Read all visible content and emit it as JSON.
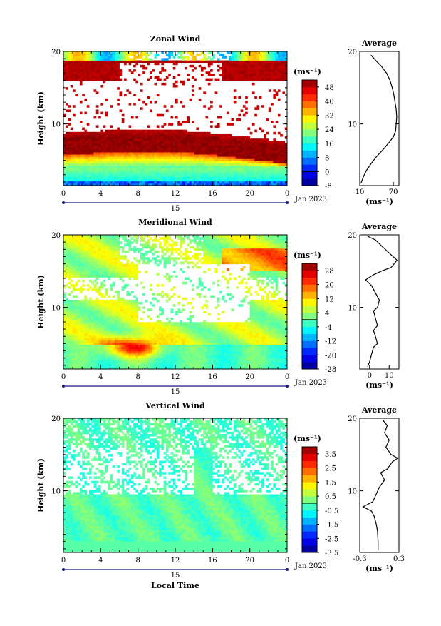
{
  "chart_data": [
    {
      "type": "heatmap",
      "title": "Zonal Wind",
      "ylabel": "Height (km)",
      "xticks": [
        "0",
        "4",
        "8",
        "12",
        "16",
        "20",
        "0"
      ],
      "date_day": "15",
      "date_month": "Jan 2023",
      "xlim": [
        0,
        24
      ],
      "ylim": [
        1.5,
        20
      ],
      "yticks": [
        "10",
        "20"
      ],
      "colorbar": {
        "unit": "(ms⁻¹)",
        "labels": [
          "48",
          "40",
          "32",
          "24",
          "16",
          "8",
          "0",
          "-8"
        ],
        "range": [
          -8,
          52
        ]
      },
      "profile": {
        "title": "Average",
        "unit": "(ms⁻¹)",
        "xticks": [
          "10",
          "70"
        ],
        "yticks": [
          "10",
          "20"
        ],
        "xlim": [
          10,
          80
        ],
        "points": [
          [
            12,
            1.8
          ],
          [
            14,
            2.2
          ],
          [
            17,
            2.8
          ],
          [
            22,
            3.6
          ],
          [
            30,
            4.5
          ],
          [
            40,
            5.5
          ],
          [
            52,
            6.5
          ],
          [
            63,
            7.5
          ],
          [
            70,
            8.2
          ],
          [
            74,
            9
          ],
          [
            75,
            10
          ],
          [
            76,
            11
          ],
          [
            75,
            12
          ],
          [
            73,
            13
          ],
          [
            71,
            14
          ],
          [
            68,
            15
          ],
          [
            64,
            16
          ],
          [
            58,
            17
          ],
          [
            48,
            18
          ],
          [
            38,
            18.8
          ],
          [
            30,
            19.5
          ]
        ]
      }
    },
    {
      "type": "heatmap",
      "title": "Meridional Wind",
      "ylabel": "Height (km)",
      "xticks": [
        "0",
        "4",
        "8",
        "12",
        "16",
        "20",
        "0"
      ],
      "date_day": "15",
      "date_month": "Jan 2023",
      "xlim": [
        0,
        24
      ],
      "ylim": [
        1.5,
        20
      ],
      "yticks": [
        "10",
        "20"
      ],
      "colorbar": {
        "unit": "(ms⁻¹)",
        "labels": [
          "28",
          "20",
          "12",
          "4",
          "-4",
          "-12",
          "-20",
          "-28"
        ],
        "range": [
          -28,
          32
        ]
      },
      "profile": {
        "title": "Average",
        "unit": "(ms⁻¹)",
        "xticks": [
          "0",
          "10"
        ],
        "yticks": [
          "10",
          "20"
        ],
        "xlim": [
          -5,
          15
        ],
        "points": [
          [
            -1,
            1.8
          ],
          [
            0,
            2.5
          ],
          [
            1,
            3.5
          ],
          [
            2,
            4.5
          ],
          [
            4,
            5
          ],
          [
            3,
            6
          ],
          [
            2,
            6.8
          ],
          [
            4,
            7.5
          ],
          [
            3,
            8.5
          ],
          [
            2,
            9.5
          ],
          [
            4,
            10
          ],
          [
            5,
            11
          ],
          [
            3,
            12
          ],
          [
            1,
            13
          ],
          [
            -2,
            13.8
          ],
          [
            2,
            14.5
          ],
          [
            6,
            15
          ],
          [
            11,
            15.5
          ],
          [
            14,
            16.5
          ],
          [
            10,
            17.5
          ],
          [
            6,
            18.5
          ],
          [
            3,
            19.3
          ],
          [
            -1,
            19.8
          ]
        ]
      }
    },
    {
      "type": "heatmap",
      "title": "Vertical Wind",
      "ylabel": "Height (km)",
      "xlabel": "Local Time",
      "xticks": [
        "0",
        "4",
        "8",
        "12",
        "16",
        "20",
        "0"
      ],
      "date_day": "15",
      "date_month": "Jan 2023",
      "xlim": [
        0,
        24
      ],
      "ylim": [
        1.5,
        20
      ],
      "yticks": [
        "10",
        "20"
      ],
      "colorbar": {
        "unit": "(ms⁻¹)",
        "labels": [
          "3.5",
          "2.5",
          "1.5",
          "0.5",
          "-0.5",
          "-1.5",
          "-2.5",
          "-3.5"
        ],
        "range": [
          -3.5,
          4
        ]
      },
      "profile": {
        "title": "Average",
        "unit": "(ms⁻¹)",
        "xticks": [
          "-0.3",
          "0.3"
        ],
        "yticks": [
          "10",
          "20"
        ],
        "xlim": [
          -0.3,
          0.3
        ],
        "points": [
          [
            -0.02,
            1.8
          ],
          [
            -0.02,
            3
          ],
          [
            -0.03,
            4.5
          ],
          [
            -0.05,
            5.5
          ],
          [
            -0.08,
            6.5
          ],
          [
            -0.12,
            7.2
          ],
          [
            -0.25,
            7.8
          ],
          [
            -0.1,
            8.5
          ],
          [
            -0.05,
            9.5
          ],
          [
            0.0,
            10.5
          ],
          [
            0.08,
            11.5
          ],
          [
            0.02,
            12.5
          ],
          [
            0.12,
            13
          ],
          [
            0.2,
            14
          ],
          [
            0.28,
            14.5
          ],
          [
            0.18,
            15
          ],
          [
            0.1,
            16
          ],
          [
            0.15,
            17
          ],
          [
            0.08,
            18
          ],
          [
            0.12,
            19
          ],
          [
            0.05,
            19.8
          ]
        ]
      }
    }
  ]
}
